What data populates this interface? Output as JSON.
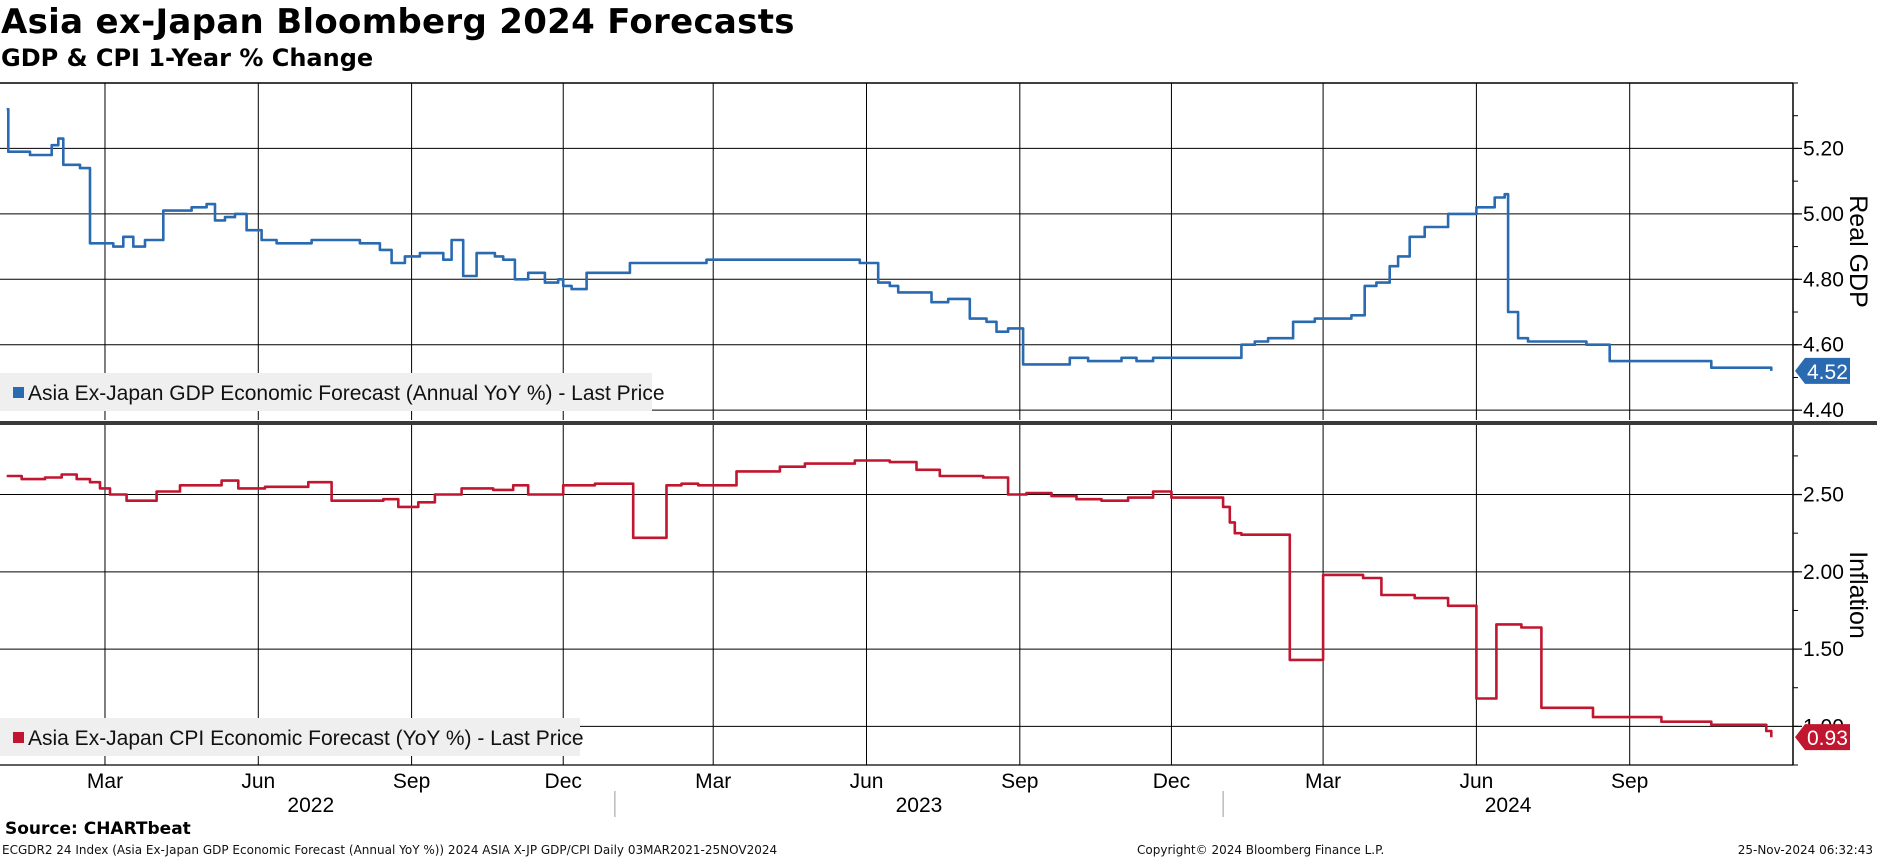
{
  "header": {
    "title": "Asia ex-Japan Bloomberg 2024 Forecasts",
    "subtitle": "GDP & CPI 1-Year % Change"
  },
  "footer": {
    "source": "Source: CHARTbeat",
    "ticker_info": "ECGDR2 24 Index (Asia Ex-Japan GDP Economic Forecast (Annual YoY %)) 2024 ASIA X-JP GDP/CPI  Daily 03MAR2021-25NOV2024",
    "copyright": "Copyright© 2024 Bloomberg Finance L.P.",
    "timestamp": "25-Nov-2024 06:32:43"
  },
  "chart_data": [
    {
      "type": "line",
      "panel": "top",
      "ylabel": "Real GDP",
      "ylim": [
        4.37,
        5.4
      ],
      "yticks": [
        4.4,
        4.6,
        4.8,
        5.0,
        5.2
      ],
      "ytick_labels": [
        "4.40",
        "4.60",
        "4.80",
        "5.00",
        "5.20"
      ],
      "grid": true,
      "legend_placement": "bottom-left",
      "color": "#2a6ab0",
      "series": [
        {
          "name": "Asia Ex-Japan GDP Economic Forecast (Annual YoY %) - Last Price",
          "last_value_label": "4.52",
          "x": [
            "2022-01-01",
            "2022-01-02",
            "2022-01-15",
            "2022-01-28",
            "2022-02-01",
            "2022-02-04",
            "2022-02-14",
            "2022-02-20",
            "2022-02-28",
            "2022-03-06",
            "2022-03-12",
            "2022-03-18",
            "2022-03-25",
            "2022-04-05",
            "2022-04-12",
            "2022-04-22",
            "2022-05-01",
            "2022-05-06",
            "2022-05-12",
            "2022-05-18",
            "2022-05-25",
            "2022-06-03",
            "2022-06-12",
            "2022-06-24",
            "2022-07-03",
            "2022-07-18",
            "2022-08-01",
            "2022-08-13",
            "2022-08-20",
            "2022-08-28",
            "2022-09-06",
            "2022-09-20",
            "2022-09-25",
            "2022-10-02",
            "2022-10-10",
            "2022-10-21",
            "2022-10-26",
            "2022-11-02",
            "2022-11-10",
            "2022-11-20",
            "2022-11-28",
            "2022-12-01",
            "2022-12-06",
            "2022-12-15",
            "2023-01-10",
            "2023-02-25",
            "2023-04-15",
            "2023-05-20",
            "2023-05-28",
            "2023-06-08",
            "2023-06-15",
            "2023-06-20",
            "2023-07-10",
            "2023-07-20",
            "2023-08-02",
            "2023-08-12",
            "2023-08-18",
            "2023-08-25",
            "2023-09-03",
            "2023-09-10",
            "2023-10-01",
            "2023-10-12",
            "2023-10-22",
            "2023-11-01",
            "2023-11-10",
            "2023-11-20",
            "2024-01-12",
            "2024-01-20",
            "2024-01-28",
            "2024-02-12",
            "2024-02-25",
            "2024-03-10",
            "2024-03-18",
            "2024-03-26",
            "2024-04-02",
            "2024-04-10",
            "2024-04-15",
            "2024-04-22",
            "2024-05-01",
            "2024-05-15",
            "2024-06-01",
            "2024-06-05",
            "2024-06-12",
            "2024-06-18",
            "2024-06-20",
            "2024-06-26",
            "2024-07-02",
            "2024-07-20",
            "2024-07-30",
            "2024-08-06",
            "2024-08-20",
            "2024-09-20",
            "2024-10-20",
            "2024-11-25"
          ],
          "y": [
            5.32,
            5.19,
            5.18,
            5.21,
            5.23,
            5.15,
            5.14,
            4.91,
            4.91,
            4.9,
            4.93,
            4.9,
            4.92,
            5.01,
            5.01,
            5.02,
            5.03,
            4.98,
            4.99,
            5.0,
            4.95,
            4.92,
            4.91,
            4.91,
            4.92,
            4.92,
            4.91,
            4.89,
            4.85,
            4.87,
            4.88,
            4.86,
            4.92,
            4.81,
            4.88,
            4.87,
            4.86,
            4.8,
            4.82,
            4.79,
            4.8,
            4.78,
            4.77,
            4.82,
            4.85,
            4.86,
            4.86,
            4.86,
            4.85,
            4.79,
            4.78,
            4.76,
            4.73,
            4.74,
            4.68,
            4.67,
            4.64,
            4.65,
            4.54,
            4.54,
            4.56,
            4.55,
            4.55,
            4.56,
            4.55,
            4.56,
            4.6,
            4.61,
            4.62,
            4.67,
            4.68,
            4.68,
            4.69,
            4.78,
            4.79,
            4.84,
            4.87,
            4.93,
            4.96,
            5.0,
            5.02,
            5.02,
            5.05,
            5.06,
            4.7,
            4.62,
            4.61,
            4.61,
            4.61,
            4.6,
            4.55,
            4.55,
            4.53,
            4.52
          ]
        }
      ]
    },
    {
      "type": "line",
      "panel": "bottom",
      "ylabel": "Inflation",
      "ylim": [
        0.75,
        2.95
      ],
      "yticks": [
        1.0,
        1.5,
        2.0,
        2.5
      ],
      "ytick_labels": [
        "1.00",
        "1.50",
        "2.00",
        "2.50"
      ],
      "grid": true,
      "legend_placement": "bottom-left",
      "color": "#c0162f",
      "series": [
        {
          "name": "Asia Ex-Japan CPI Economic Forecast (YoY %) - Last Price",
          "last_value_label": "0.93",
          "x": [
            "2022-01-01",
            "2022-01-10",
            "2022-01-24",
            "2022-02-03",
            "2022-02-12",
            "2022-02-20",
            "2022-02-26",
            "2022-03-04",
            "2022-03-14",
            "2022-04-01",
            "2022-04-15",
            "2022-05-10",
            "2022-05-20",
            "2022-06-05",
            "2022-07-01",
            "2022-07-15",
            "2022-08-15",
            "2022-08-24",
            "2022-09-05",
            "2022-09-15",
            "2022-10-01",
            "2022-10-20",
            "2022-11-01",
            "2022-11-10",
            "2022-12-01",
            "2022-12-20",
            "2023-01-10",
            "2023-01-12",
            "2023-01-20",
            "2023-02-01",
            "2023-02-10",
            "2023-02-20",
            "2023-03-15",
            "2023-04-10",
            "2023-04-25",
            "2023-05-15",
            "2023-05-25",
            "2023-06-15",
            "2023-07-01",
            "2023-07-15",
            "2023-08-10",
            "2023-08-25",
            "2023-09-05",
            "2023-09-20",
            "2023-10-05",
            "2023-10-20",
            "2023-11-05",
            "2023-11-20",
            "2023-12-01",
            "2024-01-01",
            "2024-01-05",
            "2024-01-08",
            "2024-01-12",
            "2024-01-22",
            "2024-02-10",
            "2024-03-01",
            "2024-03-25",
            "2024-04-05",
            "2024-04-20",
            "2024-04-25",
            "2024-05-15",
            "2024-05-25",
            "2024-06-01",
            "2024-06-10",
            "2024-06-13",
            "2024-06-15",
            "2024-06-28",
            "2024-07-10",
            "2024-08-10",
            "2024-09-20",
            "2024-10-20",
            "2024-11-22",
            "2024-11-25"
          ],
          "y": [
            2.62,
            2.6,
            2.61,
            2.63,
            2.6,
            2.58,
            2.54,
            2.5,
            2.46,
            2.52,
            2.56,
            2.59,
            2.54,
            2.55,
            2.58,
            2.46,
            2.47,
            2.42,
            2.45,
            2.5,
            2.54,
            2.53,
            2.56,
            2.5,
            2.56,
            2.57,
            2.57,
            2.22,
            2.22,
            2.56,
            2.57,
            2.56,
            2.65,
            2.68,
            2.7,
            2.7,
            2.72,
            2.71,
            2.66,
            2.62,
            2.61,
            2.5,
            2.51,
            2.49,
            2.47,
            2.46,
            2.48,
            2.52,
            2.48,
            2.42,
            2.32,
            2.25,
            2.24,
            2.24,
            1.43,
            1.98,
            1.96,
            1.85,
            1.85,
            1.83,
            1.78,
            1.78,
            1.18,
            1.18,
            1.66,
            1.66,
            1.64,
            1.12,
            1.06,
            1.03,
            1.01,
            0.97,
            0.93
          ]
        }
      ]
    }
  ],
  "x_axis": {
    "start": "2021-12-28",
    "end": "2024-12-08",
    "month_ticks": [
      {
        "date": "2022-03-01",
        "label": "Mar"
      },
      {
        "date": "2022-06-01",
        "label": "Jun"
      },
      {
        "date": "2022-09-01",
        "label": "Sep"
      },
      {
        "date": "2022-12-01",
        "label": "Dec"
      },
      {
        "date": "2023-03-01",
        "label": "Mar"
      },
      {
        "date": "2023-06-01",
        "label": "Jun"
      },
      {
        "date": "2023-09-01",
        "label": "Sep"
      },
      {
        "date": "2023-12-01",
        "label": "Dec"
      },
      {
        "date": "2024-03-01",
        "label": "Mar"
      },
      {
        "date": "2024-06-01",
        "label": "Jun"
      },
      {
        "date": "2024-09-01",
        "label": "Sep"
      }
    ],
    "years": [
      {
        "label": "2022",
        "from": "2022-01-01",
        "to": "2023-01-01"
      },
      {
        "label": "2023",
        "from": "2023-01-01",
        "to": "2024-01-01"
      },
      {
        "label": "2024",
        "from": "2024-01-01",
        "to": "2024-12-08"
      }
    ]
  }
}
